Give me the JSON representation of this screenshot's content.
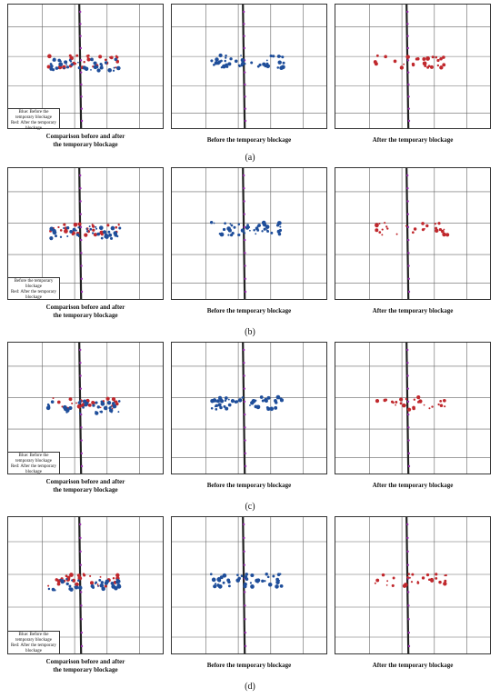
{
  "rows": [
    {
      "label": "(a)",
      "captions": [
        "Comparison before and after\nthe temporary blockage",
        "Before the temporary blockage",
        "After the temporary blockage"
      ],
      "legend": "Blue: Before the temporary blockage\nRed: After the temporary blockage"
    },
    {
      "label": "(b)",
      "captions": [
        "Comparison before and after\nthe temporary blockage",
        "Before the temporary blockage",
        "After the temporary blockage"
      ],
      "legend": "Before the temporary blockage\nRed: After the temporary blockage"
    },
    {
      "label": "(c)",
      "captions": [
        "Comparison before and after\nthe temporary blockage",
        "Before the temporary blockage",
        "After the temporary blockage"
      ],
      "legend": "Blue: Before the temporary blockage\nRed: After the temporary blockage"
    },
    {
      "label": "(d)",
      "captions": [
        "Comparison before and after\nthe temporary blockage",
        "Before the temporary blockage",
        "After the temporary blockage"
      ],
      "legend": "Blue: Before the temporary blockage\nRed: After the temporary blockage"
    }
  ],
  "colors": {
    "before": "#1f4e9a",
    "after": "#c0282d",
    "well": "#222222",
    "marker": "#9b30b0",
    "grid": "#666666"
  }
}
